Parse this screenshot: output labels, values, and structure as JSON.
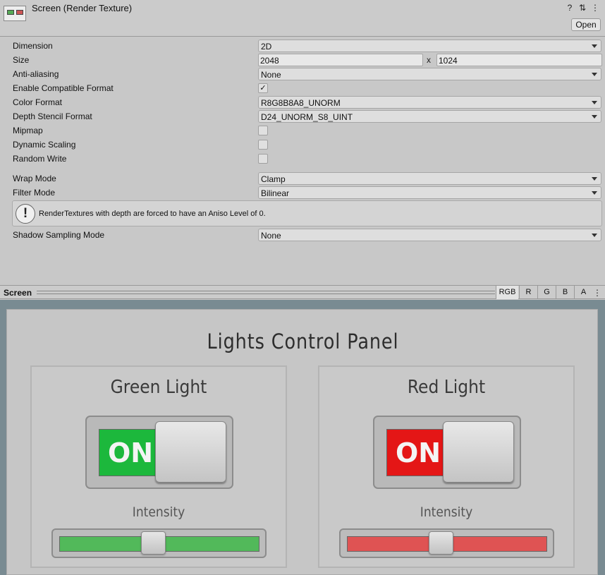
{
  "window": {
    "title": "Screen (Render Texture)",
    "open_label": "Open",
    "header_icons": [
      "help-icon",
      "sliders-icon",
      "kebab-menu-icon"
    ],
    "help_glyph": "?",
    "sliders_glyph": "⇅",
    "kebab_glyph": "⋮"
  },
  "inspector": {
    "dimension": {
      "label": "Dimension",
      "value": "2D"
    },
    "size": {
      "label": "Size",
      "width": "2048",
      "separator": "x",
      "height": "1024"
    },
    "anti_aliasing": {
      "label": "Anti-aliasing",
      "value": "None"
    },
    "enable_compatible_format": {
      "label": "Enable Compatible Format",
      "checked": true,
      "mark": "✓"
    },
    "color_format": {
      "label": "Color Format",
      "value": "R8G8B8A8_UNORM"
    },
    "depth_stencil_format": {
      "label": "Depth Stencil Format",
      "value": "D24_UNORM_S8_UINT"
    },
    "mipmap": {
      "label": "Mipmap",
      "checked": false
    },
    "dynamic_scaling": {
      "label": "Dynamic Scaling",
      "checked": false
    },
    "random_write": {
      "label": "Random Write",
      "checked": false
    },
    "wrap_mode": {
      "label": "Wrap Mode",
      "value": "Clamp"
    },
    "filter_mode": {
      "label": "Filter Mode",
      "value": "Bilinear"
    },
    "help": {
      "icon": "!",
      "message": "RenderTextures with depth are forced to have an Aniso Level of 0."
    },
    "shadow_sampling_mode": {
      "label": "Shadow Sampling Mode",
      "value": "None"
    }
  },
  "preview_toolbar": {
    "title": "Screen",
    "channels": [
      "RGB",
      "R",
      "G",
      "B",
      "A"
    ],
    "active_channel": "RGB"
  },
  "game_ui": {
    "title": "Lights Control Panel",
    "cards": [
      {
        "title": "Green Light",
        "toggle_label": "ON",
        "state": "on",
        "color": "#1cb83c",
        "intensity_label": "Intensity",
        "track_color": "#52b95a",
        "intensity": 0.47
      },
      {
        "title": "Red Light",
        "toggle_label": "ON",
        "state": "on",
        "color": "#e41616",
        "intensity_label": "Intensity",
        "track_color": "#df5353",
        "intensity": 0.47
      }
    ]
  }
}
